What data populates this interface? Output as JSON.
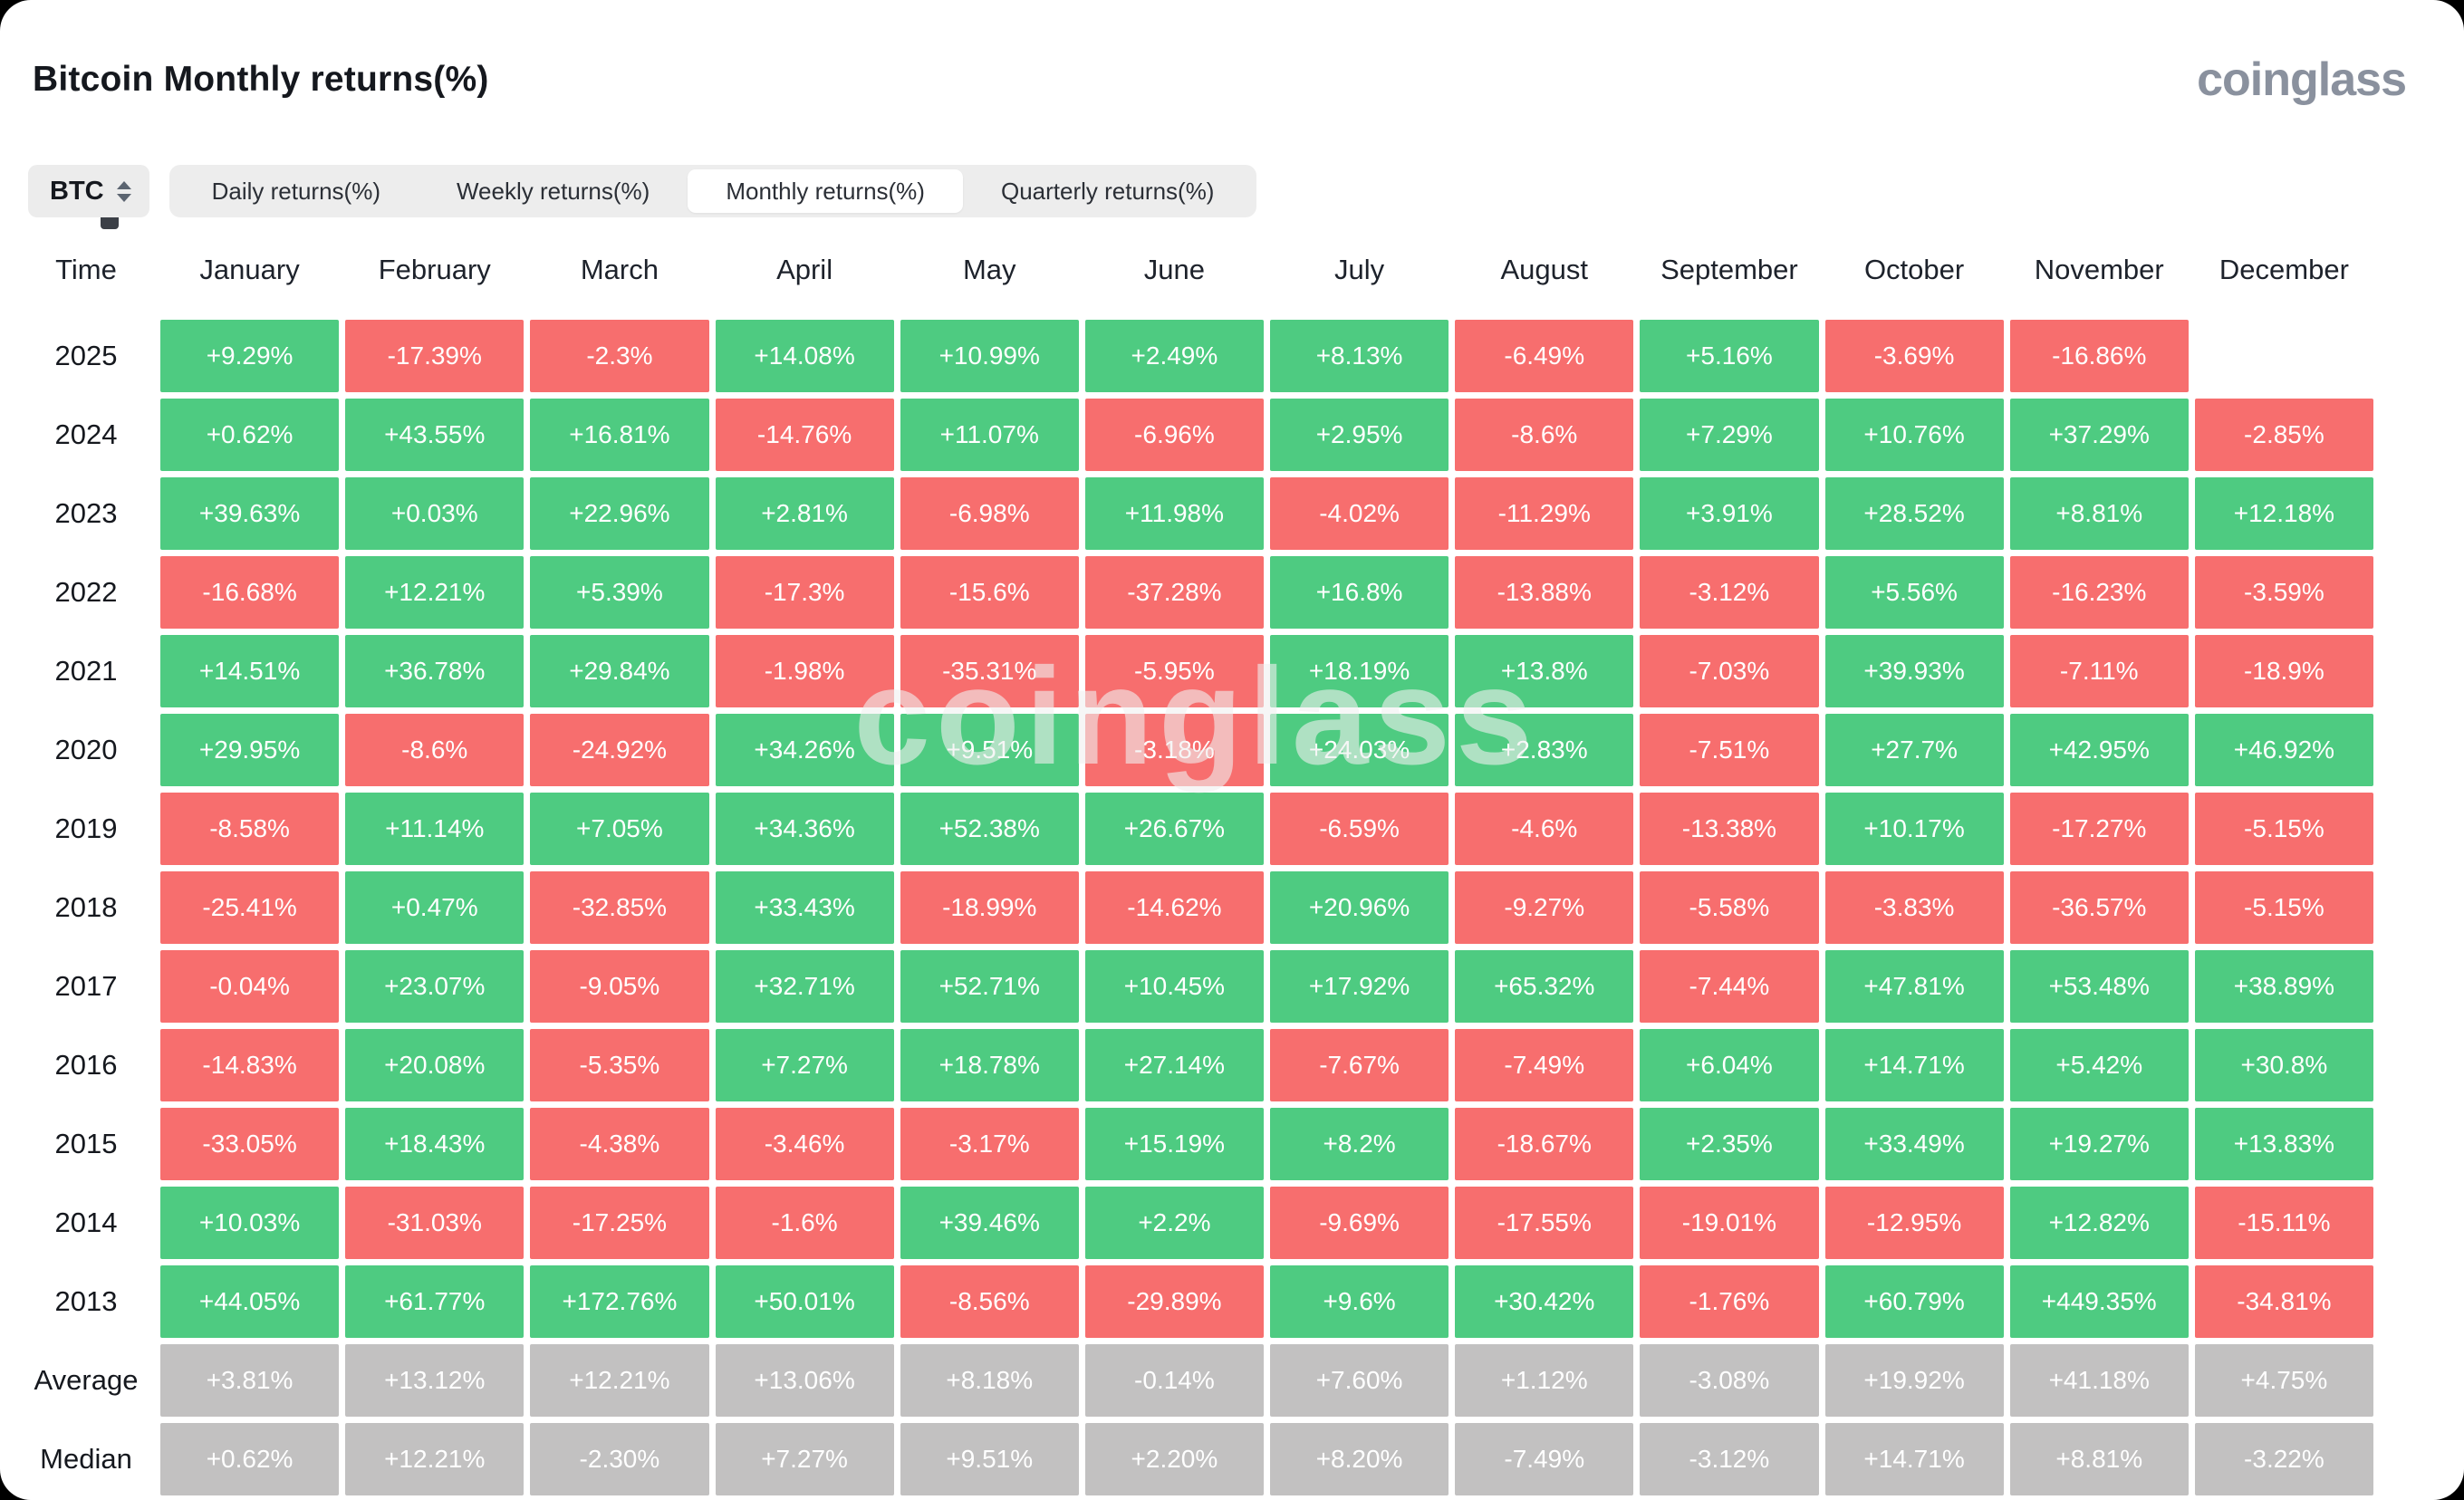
{
  "page": {
    "title": "Bitcoin Monthly returns(%)",
    "brand": "coinglass",
    "watermark": "coinglass"
  },
  "controls": {
    "symbol_select": {
      "value": "BTC",
      "icon": "updown-chevron-icon"
    },
    "tabs": [
      {
        "label": "Daily returns(%)",
        "active": false
      },
      {
        "label": "Weekly returns(%)",
        "active": false
      },
      {
        "label": "Monthly returns(%)",
        "active": true
      },
      {
        "label": "Quarterly returns(%)",
        "active": false
      }
    ]
  },
  "table": {
    "corner_label": "Time",
    "months": [
      "January",
      "February",
      "March",
      "April",
      "May",
      "June",
      "July",
      "August",
      "September",
      "October",
      "November",
      "December"
    ],
    "rows": [
      {
        "label": "2025",
        "summary": false,
        "values": [
          "+9.29%",
          "-17.39%",
          "-2.3%",
          "+14.08%",
          "+10.99%",
          "+2.49%",
          "+8.13%",
          "-6.49%",
          "+5.16%",
          "-3.69%",
          "-16.86%",
          ""
        ]
      },
      {
        "label": "2024",
        "summary": false,
        "values": [
          "+0.62%",
          "+43.55%",
          "+16.81%",
          "-14.76%",
          "+11.07%",
          "-6.96%",
          "+2.95%",
          "-8.6%",
          "+7.29%",
          "+10.76%",
          "+37.29%",
          "-2.85%"
        ]
      },
      {
        "label": "2023",
        "summary": false,
        "values": [
          "+39.63%",
          "+0.03%",
          "+22.96%",
          "+2.81%",
          "-6.98%",
          "+11.98%",
          "-4.02%",
          "-11.29%",
          "+3.91%",
          "+28.52%",
          "+8.81%",
          "+12.18%"
        ]
      },
      {
        "label": "2022",
        "summary": false,
        "values": [
          "-16.68%",
          "+12.21%",
          "+5.39%",
          "-17.3%",
          "-15.6%",
          "-37.28%",
          "+16.8%",
          "-13.88%",
          "-3.12%",
          "+5.56%",
          "-16.23%",
          "-3.59%"
        ]
      },
      {
        "label": "2021",
        "summary": false,
        "values": [
          "+14.51%",
          "+36.78%",
          "+29.84%",
          "-1.98%",
          "-35.31%",
          "-5.95%",
          "+18.19%",
          "+13.8%",
          "-7.03%",
          "+39.93%",
          "-7.11%",
          "-18.9%"
        ]
      },
      {
        "label": "2020",
        "summary": false,
        "values": [
          "+29.95%",
          "-8.6%",
          "-24.92%",
          "+34.26%",
          "+9.51%",
          "-3.18%",
          "+24.03%",
          "+2.83%",
          "-7.51%",
          "+27.7%",
          "+42.95%",
          "+46.92%"
        ]
      },
      {
        "label": "2019",
        "summary": false,
        "values": [
          "-8.58%",
          "+11.14%",
          "+7.05%",
          "+34.36%",
          "+52.38%",
          "+26.67%",
          "-6.59%",
          "-4.6%",
          "-13.38%",
          "+10.17%",
          "-17.27%",
          "-5.15%"
        ]
      },
      {
        "label": "2018",
        "summary": false,
        "values": [
          "-25.41%",
          "+0.47%",
          "-32.85%",
          "+33.43%",
          "-18.99%",
          "-14.62%",
          "+20.96%",
          "-9.27%",
          "-5.58%",
          "-3.83%",
          "-36.57%",
          "-5.15%"
        ]
      },
      {
        "label": "2017",
        "summary": false,
        "values": [
          "-0.04%",
          "+23.07%",
          "-9.05%",
          "+32.71%",
          "+52.71%",
          "+10.45%",
          "+17.92%",
          "+65.32%",
          "-7.44%",
          "+47.81%",
          "+53.48%",
          "+38.89%"
        ]
      },
      {
        "label": "2016",
        "summary": false,
        "values": [
          "-14.83%",
          "+20.08%",
          "-5.35%",
          "+7.27%",
          "+18.78%",
          "+27.14%",
          "-7.67%",
          "-7.49%",
          "+6.04%",
          "+14.71%",
          "+5.42%",
          "+30.8%"
        ]
      },
      {
        "label": "2015",
        "summary": false,
        "values": [
          "-33.05%",
          "+18.43%",
          "-4.38%",
          "-3.46%",
          "-3.17%",
          "+15.19%",
          "+8.2%",
          "-18.67%",
          "+2.35%",
          "+33.49%",
          "+19.27%",
          "+13.83%"
        ]
      },
      {
        "label": "2014",
        "summary": false,
        "values": [
          "+10.03%",
          "-31.03%",
          "-17.25%",
          "-1.6%",
          "+39.46%",
          "+2.2%",
          "-9.69%",
          "-17.55%",
          "-19.01%",
          "-12.95%",
          "+12.82%",
          "-15.11%"
        ]
      },
      {
        "label": "2013",
        "summary": false,
        "values": [
          "+44.05%",
          "+61.77%",
          "+172.76%",
          "+50.01%",
          "-8.56%",
          "-29.89%",
          "+9.6%",
          "+30.42%",
          "-1.76%",
          "+60.79%",
          "+449.35%",
          "-34.81%"
        ]
      },
      {
        "label": "Average",
        "summary": true,
        "values": [
          "+3.81%",
          "+13.12%",
          "+12.21%",
          "+13.06%",
          "+8.18%",
          "-0.14%",
          "+7.60%",
          "+1.12%",
          "-3.08%",
          "+19.92%",
          "+41.18%",
          "+4.75%"
        ]
      },
      {
        "label": "Median",
        "summary": true,
        "values": [
          "+0.62%",
          "+12.21%",
          "-2.30%",
          "+7.27%",
          "+9.51%",
          "+2.20%",
          "+8.20%",
          "-7.49%",
          "-3.12%",
          "+14.71%",
          "+8.81%",
          "-3.22%"
        ]
      }
    ]
  },
  "colors": {
    "positive": "#4ecb81",
    "negative": "#f76e6e",
    "summary": "#c2c1c1",
    "cell_text": "#ffffff",
    "tab_bar": "#ededed",
    "brand": "#8a919e"
  },
  "chart_data": {
    "type": "heatmap",
    "title": "Bitcoin Monthly returns(%)",
    "x_categories": [
      "January",
      "February",
      "March",
      "April",
      "May",
      "June",
      "July",
      "August",
      "September",
      "October",
      "November",
      "December"
    ],
    "y_categories": [
      "2025",
      "2024",
      "2023",
      "2022",
      "2021",
      "2020",
      "2019",
      "2018",
      "2017",
      "2016",
      "2015",
      "2014",
      "2013",
      "Average",
      "Median"
    ],
    "values_percent": [
      [
        9.29,
        -17.39,
        -2.3,
        14.08,
        10.99,
        2.49,
        8.13,
        -6.49,
        5.16,
        -3.69,
        -16.86,
        null
      ],
      [
        0.62,
        43.55,
        16.81,
        -14.76,
        11.07,
        -6.96,
        2.95,
        -8.6,
        7.29,
        10.76,
        37.29,
        -2.85
      ],
      [
        39.63,
        0.03,
        22.96,
        2.81,
        -6.98,
        11.98,
        -4.02,
        -11.29,
        3.91,
        28.52,
        8.81,
        12.18
      ],
      [
        -16.68,
        12.21,
        5.39,
        -17.3,
        -15.6,
        -37.28,
        16.8,
        -13.88,
        -3.12,
        5.56,
        -16.23,
        -3.59
      ],
      [
        14.51,
        36.78,
        29.84,
        -1.98,
        -35.31,
        -5.95,
        18.19,
        13.8,
        -7.03,
        39.93,
        -7.11,
        -18.9
      ],
      [
        29.95,
        -8.6,
        -24.92,
        34.26,
        9.51,
        -3.18,
        24.03,
        2.83,
        -7.51,
        27.7,
        42.95,
        46.92
      ],
      [
        -8.58,
        11.14,
        7.05,
        34.36,
        52.38,
        26.67,
        -6.59,
        -4.6,
        -13.38,
        10.17,
        -17.27,
        -5.15
      ],
      [
        -25.41,
        0.47,
        -32.85,
        33.43,
        -18.99,
        -14.62,
        20.96,
        -9.27,
        -5.58,
        -3.83,
        -36.57,
        -5.15
      ],
      [
        -0.04,
        23.07,
        -9.05,
        32.71,
        52.71,
        10.45,
        17.92,
        65.32,
        -7.44,
        47.81,
        53.48,
        38.89
      ],
      [
        -14.83,
        20.08,
        -5.35,
        7.27,
        18.78,
        27.14,
        -7.67,
        -7.49,
        6.04,
        14.71,
        5.42,
        30.8
      ],
      [
        -33.05,
        18.43,
        -4.38,
        -3.46,
        -3.17,
        15.19,
        8.2,
        -18.67,
        2.35,
        33.49,
        19.27,
        13.83
      ],
      [
        10.03,
        -31.03,
        -17.25,
        -1.6,
        39.46,
        2.2,
        -9.69,
        -17.55,
        -19.01,
        -12.95,
        12.82,
        -15.11
      ],
      [
        44.05,
        61.77,
        172.76,
        50.01,
        -8.56,
        -29.89,
        9.6,
        30.42,
        -1.76,
        60.79,
        449.35,
        -34.81
      ],
      [
        3.81,
        13.12,
        12.21,
        13.06,
        8.18,
        -0.14,
        7.6,
        1.12,
        -3.08,
        19.92,
        41.18,
        4.75
      ],
      [
        0.62,
        12.21,
        -2.3,
        7.27,
        9.51,
        2.2,
        8.2,
        -7.49,
        -3.12,
        14.71,
        8.81,
        -3.22
      ]
    ],
    "legend": "green = positive monthly return, red = negative monthly return, gray = Average/Median summary rows, blank = no data yet",
    "grid": false
  }
}
